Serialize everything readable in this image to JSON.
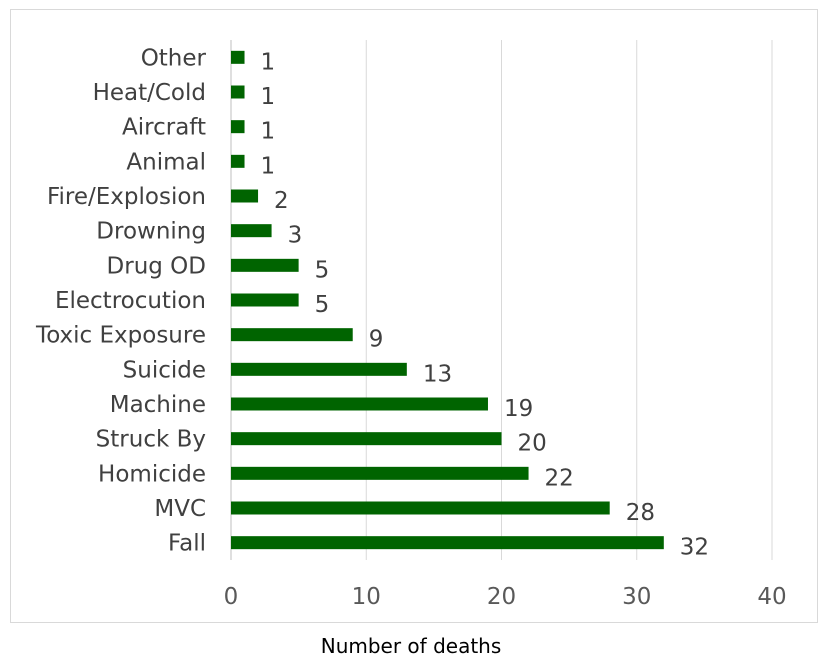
{
  "chart_data": {
    "type": "bar",
    "orientation": "horizontal",
    "categories": [
      "Other",
      "Heat/Cold",
      "Aircraft",
      "Animal",
      "Fire/Explosion",
      "Drowning",
      "Drug OD",
      "Electrocution",
      "Toxic Exposure",
      "Suicide",
      "Machine",
      "Struck By",
      "Homicide",
      "MVC",
      "Fall"
    ],
    "values": [
      1,
      1,
      1,
      1,
      2,
      3,
      5,
      5,
      9,
      13,
      19,
      20,
      22,
      28,
      32
    ],
    "xlabel": "Number of deaths",
    "ylabel": "",
    "title": "",
    "xlim": [
      0,
      40
    ],
    "xticks": [
      0,
      10,
      20,
      30,
      40
    ],
    "grid": "vertical",
    "bar_color": "#006400",
    "data_labels": true
  }
}
